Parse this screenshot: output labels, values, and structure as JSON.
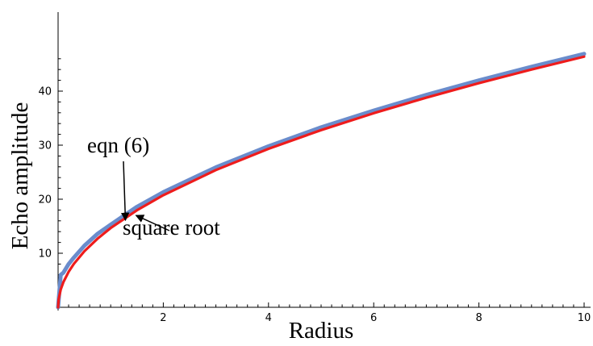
{
  "chart_data": {
    "type": "line",
    "title": "",
    "xlabel": "Radius",
    "ylabel": "Echo amplitude",
    "xlim": [
      0,
      10
    ],
    "ylim": [
      0,
      47
    ],
    "xticks": [
      2,
      4,
      6,
      8,
      10
    ],
    "yticks": [
      10,
      20,
      30,
      40
    ],
    "grid": false,
    "series": [
      {
        "color": "#6a8ccc",
        "x": [
          0,
          0.05,
          0.1,
          0.2,
          0.3,
          0.5,
          0.75,
          1,
          1.5,
          2,
          3,
          4,
          5,
          6,
          7,
          8,
          9,
          10
        ],
        "y": [
          0,
          6.0,
          6.4,
          8.0,
          9.2,
          11.4,
          13.6,
          15.3,
          18.6,
          21.3,
          25.9,
          29.8,
          33.3,
          36.4,
          39.3,
          42.0,
          44.5,
          46.9
        ]
      },
      {
        "color": "#ee1c1c",
        "x": [
          0,
          0.01,
          0.05,
          0.1,
          0.2,
          0.3,
          0.5,
          0.75,
          1,
          1.5,
          2,
          3,
          4,
          5,
          6,
          7,
          8,
          9,
          10
        ],
        "y": [
          0,
          1.47,
          3.28,
          4.64,
          6.56,
          8.04,
          10.37,
          12.7,
          14.67,
          17.96,
          20.74,
          25.4,
          29.33,
          32.79,
          35.92,
          38.8,
          41.48,
          44.0,
          46.38
        ]
      }
    ],
    "annotations": [
      {
        "text": "eqn (6)",
        "arrow_to": [
          1.28,
          16.4
        ]
      },
      {
        "text": "square root",
        "arrow_to": [
          1.45,
          18.2
        ]
      }
    ]
  }
}
